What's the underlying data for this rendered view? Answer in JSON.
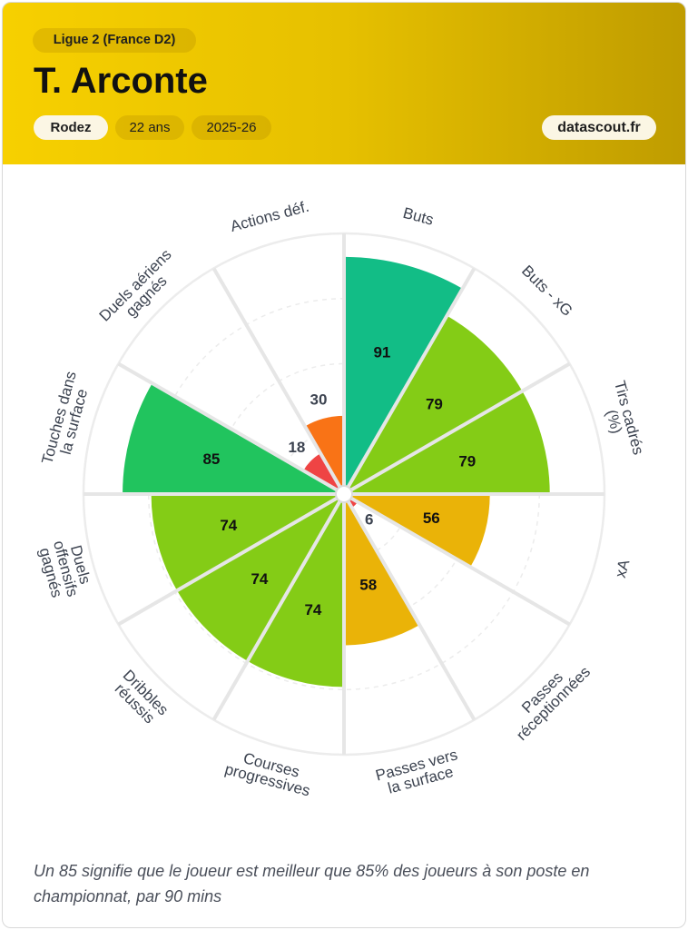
{
  "header": {
    "league": "Ligue 2 (France D2)",
    "player_name": "T. Arconte",
    "team": "Rodez",
    "age": "22 ans",
    "season": "2025-26",
    "brand": "datascout.fr"
  },
  "footnote": "Un 85 signifie que le joueur est meilleur que 85% des joueurs à son poste en championnat, par 90 mins",
  "colors": {
    "header_start": "#f7d000",
    "header_end": "#bf9c00",
    "elite": "#12bd86",
    "high": "#21c45e",
    "good": "#84cc16",
    "average": "#eab308",
    "low": "#f97316",
    "poor": "#ef4444"
  },
  "chart_data": {
    "type": "polar-bar",
    "scale": [
      0,
      100
    ],
    "grid": true,
    "categories": [
      {
        "label": "Buts",
        "value": 91
      },
      {
        "label": "Buts - xG",
        "value": 79
      },
      {
        "label": "Tirs cadrés (%)",
        "value": 79
      },
      {
        "label": "xA",
        "value": 56
      },
      {
        "label": "Passes réceptionnées",
        "value": 6
      },
      {
        "label": "Passes vers la surface",
        "value": 58
      },
      {
        "label": "Courses progressives",
        "value": 74
      },
      {
        "label": "Dribbles réussis",
        "value": 74
      },
      {
        "label": "Duels offensifs gagnés",
        "value": 74
      },
      {
        "label": "Touches dans la surface",
        "value": 85
      },
      {
        "label": "Duels aériens gagnés",
        "value": 18
      },
      {
        "label": "Actions déf.",
        "value": 30
      }
    ]
  }
}
